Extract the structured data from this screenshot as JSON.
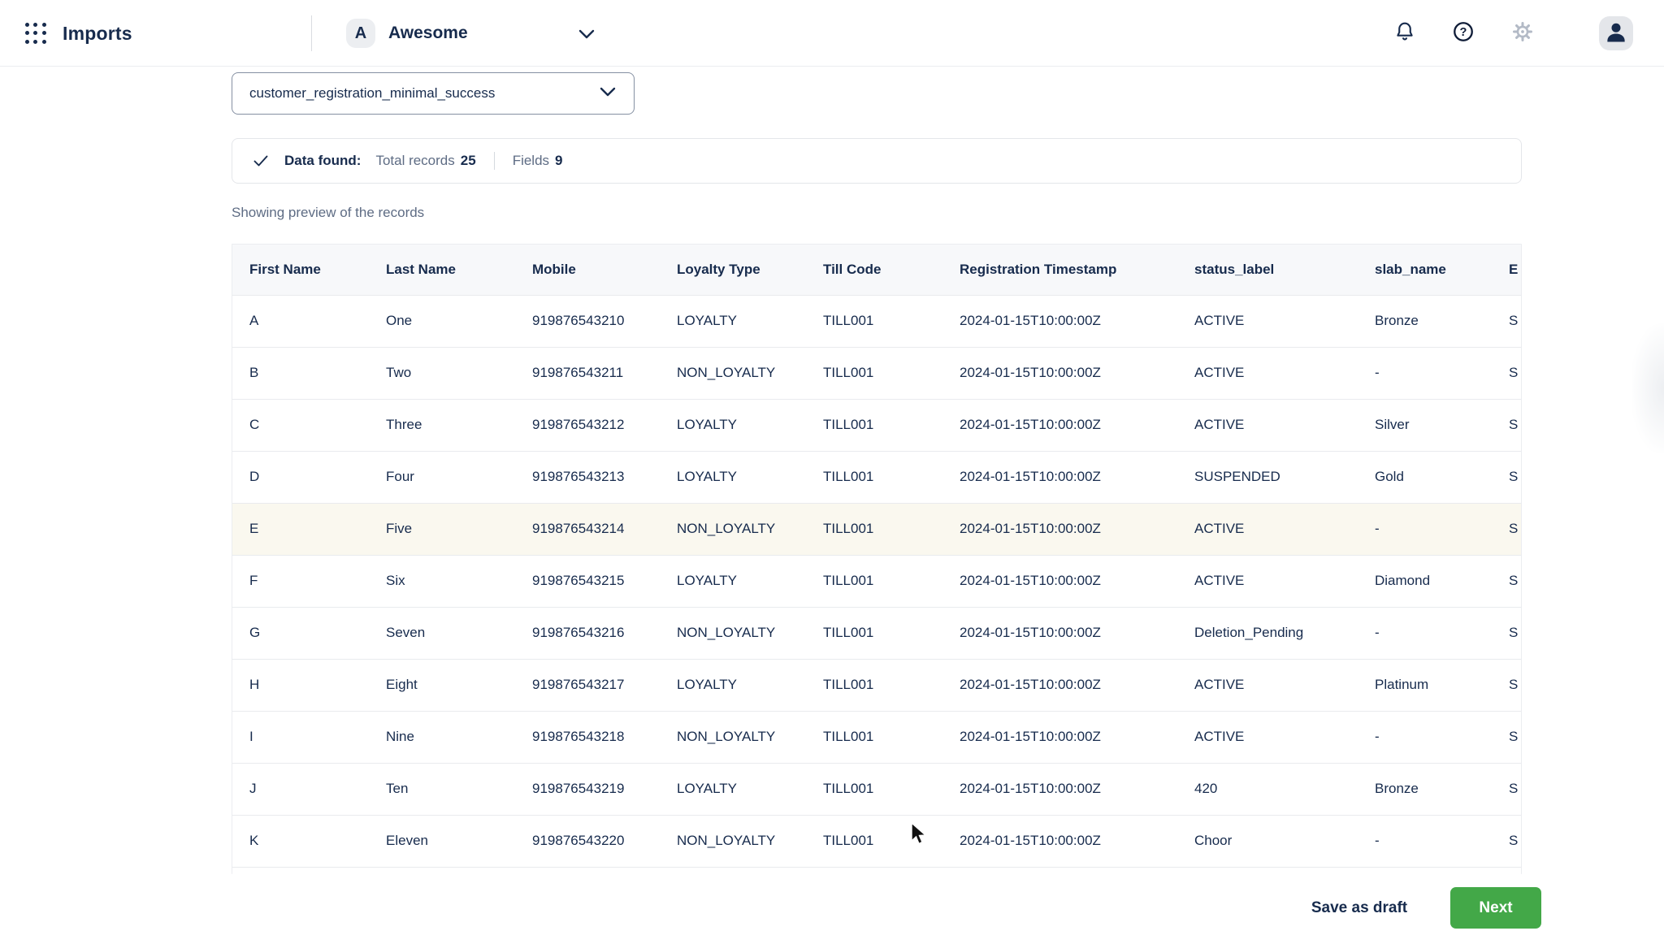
{
  "topbar": {
    "app_title": "Imports",
    "workspace": {
      "initial": "A",
      "name": "Awesome"
    }
  },
  "file_select": {
    "value": "customer_registration_minimal_success"
  },
  "summary": {
    "status_label": "Data found:",
    "total_records_label": "Total records",
    "total_records": "25",
    "fields_label": "Fields",
    "fields": "9"
  },
  "preview_caption": "Showing preview of the records",
  "table": {
    "columns": [
      "First Name",
      "Last Name",
      "Mobile",
      "Loyalty Type",
      "Till Code",
      "Registration Timestamp",
      "status_label",
      "slab_name",
      "E"
    ],
    "highlighted_row_index": 4,
    "rows": [
      [
        "A",
        "One",
        "919876543210",
        "LOYALTY",
        "TILL001",
        "2024-01-15T10:00:00Z",
        "ACTIVE",
        "Bronze",
        "S"
      ],
      [
        "B",
        "Two",
        "919876543211",
        "NON_LOYALTY",
        "TILL001",
        "2024-01-15T10:00:00Z",
        "ACTIVE",
        "-",
        "S"
      ],
      [
        "C",
        "Three",
        "919876543212",
        "LOYALTY",
        "TILL001",
        "2024-01-15T10:00:00Z",
        "ACTIVE",
        "Silver",
        "S"
      ],
      [
        "D",
        "Four",
        "919876543213",
        "LOYALTY",
        "TILL001",
        "2024-01-15T10:00:00Z",
        "SUSPENDED",
        "Gold",
        "S"
      ],
      [
        "E",
        "Five",
        "919876543214",
        "NON_LOYALTY",
        "TILL001",
        "2024-01-15T10:00:00Z",
        "ACTIVE",
        "-",
        "S"
      ],
      [
        "F",
        "Six",
        "919876543215",
        "LOYALTY",
        "TILL001",
        "2024-01-15T10:00:00Z",
        "ACTIVE",
        "Diamond",
        "S"
      ],
      [
        "G",
        "Seven",
        "919876543216",
        "NON_LOYALTY",
        "TILL001",
        "2024-01-15T10:00:00Z",
        "Deletion_Pending",
        "-",
        "S"
      ],
      [
        "H",
        "Eight",
        "919876543217",
        "LOYALTY",
        "TILL001",
        "2024-01-15T10:00:00Z",
        "ACTIVE",
        "Platinum",
        "S"
      ],
      [
        "I",
        "Nine",
        "919876543218",
        "NON_LOYALTY",
        "TILL001",
        "2024-01-15T10:00:00Z",
        "ACTIVE",
        "-",
        "S"
      ],
      [
        "J",
        "Ten",
        "919876543219",
        "LOYALTY",
        "TILL001",
        "2024-01-15T10:00:00Z",
        "420",
        "Bronze",
        "S"
      ],
      [
        "K",
        "Eleven",
        "919876543220",
        "NON_LOYALTY",
        "TILL001",
        "2024-01-15T10:00:00Z",
        "Choor",
        "-",
        "S"
      ]
    ]
  },
  "footer": {
    "save_draft_label": "Save as draft",
    "next_label": "Next"
  },
  "colors": {
    "navy": "#172B4D",
    "accent_green": "#43A848",
    "highlight_row": "#FAF8EF"
  }
}
